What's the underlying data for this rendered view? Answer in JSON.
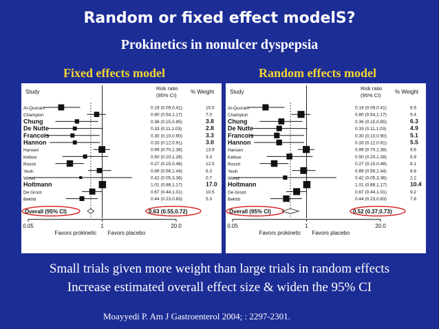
{
  "slide": {
    "title": "Random or fixed effect modelS?",
    "subtitle": "Prokinetics in nonulcer dyspepsia",
    "notes": [
      "Small trials given more weight than large trials in random effects",
      "Increase estimated overall effect size & widen the 95% CI"
    ],
    "citation": "Moayyedi P. Am J Gastroenterol 2004;  : 2297-2301."
  },
  "colors": {
    "background": "#1d2d96",
    "title": "#ffffff",
    "panel_title": "#f5d630",
    "highlight": "#d62a2a",
    "panel": "#ffffff"
  },
  "chart_data": [
    {
      "type": "forest",
      "panel_title": "Fixed effects model",
      "header": {
        "study": "Study",
        "rr": "Risk ratio",
        "ci": "(95% CI)",
        "weight": "% Weight"
      },
      "x_scale": "log",
      "xlim": [
        0.05,
        20.0
      ],
      "ticks": [
        "0.05",
        "1",
        "20.0"
      ],
      "xlabel_left": "Favors prokinetic",
      "xlabel_right": "Favors placebo",
      "studies": [
        {
          "name": "Al-Quorain",
          "rr": 0.19,
          "lo": 0.09,
          "hi": 0.41,
          "label": "0.19 (0.09,0.41)",
          "weight": "10.5"
        },
        {
          "name": "Champion",
          "rr": 0.8,
          "lo": 0.54,
          "hi": 1.17,
          "label": "0.80 (0.54,1.17)",
          "weight": "7.0"
        },
        {
          "name": "Chung",
          "rr": 0.36,
          "lo": 0.15,
          "hi": 0.85,
          "label": "0.36 (0.15,0.85)",
          "weight": "3.8"
        },
        {
          "name": "De Nutte",
          "rr": 0.33,
          "lo": 0.11,
          "hi": 1.03,
          "label": "0.33 (0.11,1.03)",
          "weight": "2.8"
        },
        {
          "name": "Francois",
          "rr": 0.3,
          "lo": 0.1,
          "hi": 0.9,
          "label": "0.30 (0.10,0.90)",
          "weight": "3.3"
        },
        {
          "name": "Hannon",
          "rr": 0.33,
          "lo": 0.12,
          "hi": 0.91,
          "label": "0.33 (0.12,0.91)",
          "weight": "3.0"
        },
        {
          "name": "Hansen",
          "rr": 0.99,
          "lo": 0.7,
          "hi": 1.38,
          "label": "0.99 (0.70,1.38)",
          "weight": "13.9"
        },
        {
          "name": "Kellow",
          "rr": 0.5,
          "lo": 0.2,
          "hi": 1.28,
          "label": "0.50 (0.20,1.28)",
          "weight": "3.3"
        },
        {
          "name": "Rosch",
          "rr": 0.27,
          "lo": 0.15,
          "hi": 0.48,
          "label": "0.27 (0.15,0.48)",
          "weight": "12.5"
        },
        {
          "name": "Yeoh",
          "rr": 0.89,
          "lo": 0.56,
          "hi": 1.44,
          "label": "0.89 (0.56,1.44)",
          "weight": "6.3"
        },
        {
          "name": "Wood",
          "rr": 0.42,
          "lo": 0.05,
          "hi": 3.36,
          "label": "0.42 (0.05,3.36)",
          "weight": "0.7"
        },
        {
          "name": "Holtmann",
          "rr": 1.01,
          "lo": 0.88,
          "hi": 1.17,
          "label": "1.01 (0.88,1.17)",
          "weight": "17.0"
        },
        {
          "name": "De Groot",
          "rr": 0.67,
          "lo": 0.44,
          "hi": 1.01,
          "label": "0.67 (0.44,1.01)",
          "weight": "10.5"
        },
        {
          "name": "Bekhti",
          "rr": 0.44,
          "lo": 0.23,
          "hi": 0.83,
          "label": "0.44 (0.23,0.83)",
          "weight": "5.3"
        }
      ],
      "overall": {
        "name": "Overall (95% CI)",
        "rr": 0.63,
        "lo": 0.55,
        "hi": 0.72,
        "label": "0.63 (0.55,0.72)"
      }
    },
    {
      "type": "forest",
      "panel_title": "Random effects model",
      "header": {
        "study": "Study",
        "rr": "Risk ratio",
        "ci": "(95% CI)",
        "weight": "% Weight"
      },
      "x_scale": "log",
      "xlim": [
        0.05,
        20.0
      ],
      "ticks": [
        "0.05",
        "1",
        "20.0"
      ],
      "xlabel_left": "Favors prokinetic",
      "xlabel_right": "Favors placebo",
      "studies": [
        {
          "name": "Al-Quorain",
          "rr": 0.19,
          "lo": 0.09,
          "hi": 0.41,
          "label": "0.19 (0.09,0.41)",
          "weight": "6.9"
        },
        {
          "name": "Champion",
          "rr": 0.8,
          "lo": 0.54,
          "hi": 1.17,
          "label": "0.80 (0.54,1.17)",
          "weight": "9.4"
        },
        {
          "name": "Chung",
          "rr": 0.36,
          "lo": 0.15,
          "hi": 0.85,
          "label": "0.36 (0.15,0.85)",
          "weight": "6.3"
        },
        {
          "name": "De Nutte",
          "rr": 0.33,
          "lo": 0.11,
          "hi": 1.03,
          "label": "0.33 (0.11,1.03)",
          "weight": "4.9"
        },
        {
          "name": "Francois",
          "rr": 0.3,
          "lo": 0.1,
          "hi": 0.9,
          "label": "0.30 (0.10,0.90)",
          "weight": "5.1"
        },
        {
          "name": "Hannon",
          "rr": 0.33,
          "lo": 0.12,
          "hi": 0.91,
          "label": "0.33 (0.12,0.91)",
          "weight": "5.5"
        },
        {
          "name": "Hansen",
          "rr": 0.99,
          "lo": 0.7,
          "hi": 1.38,
          "label": "0.99 (0.70,1.38)",
          "weight": "9.6"
        },
        {
          "name": "Kellow",
          "rr": 0.5,
          "lo": 0.2,
          "hi": 1.28,
          "label": "0.50 (0.20,1.28)",
          "weight": "5.9"
        },
        {
          "name": "Rosch",
          "rr": 0.27,
          "lo": 0.15,
          "hi": 0.48,
          "label": "0.27 (0.15,0.48)",
          "weight": "8.1"
        },
        {
          "name": "Yeoh",
          "rr": 0.89,
          "lo": 0.56,
          "hi": 1.44,
          "label": "0.89 (0.56,1.44)",
          "weight": "8.8"
        },
        {
          "name": "Wood",
          "rr": 0.42,
          "lo": 0.05,
          "hi": 3.36,
          "label": "0.42 (0.05,3.36)",
          "weight": "2.2"
        },
        {
          "name": "Holtmann",
          "rr": 1.01,
          "lo": 0.88,
          "hi": 1.17,
          "label": "1.01 (0.88,1.17)",
          "weight": "10.4"
        },
        {
          "name": "De Groot",
          "rr": 0.67,
          "lo": 0.44,
          "hi": 1.01,
          "label": "0.67 (0.44,1.01)",
          "weight": "9.2"
        },
        {
          "name": "Bekhti",
          "rr": 0.44,
          "lo": 0.23,
          "hi": 0.83,
          "label": "0.44 (0.23,0.83)",
          "weight": "7.8"
        }
      ],
      "overall": {
        "name": "Overall (95% CI)",
        "rr": 0.52,
        "lo": 0.37,
        "hi": 0.73,
        "label": "0.52 (0.37,0.73)"
      }
    }
  ]
}
